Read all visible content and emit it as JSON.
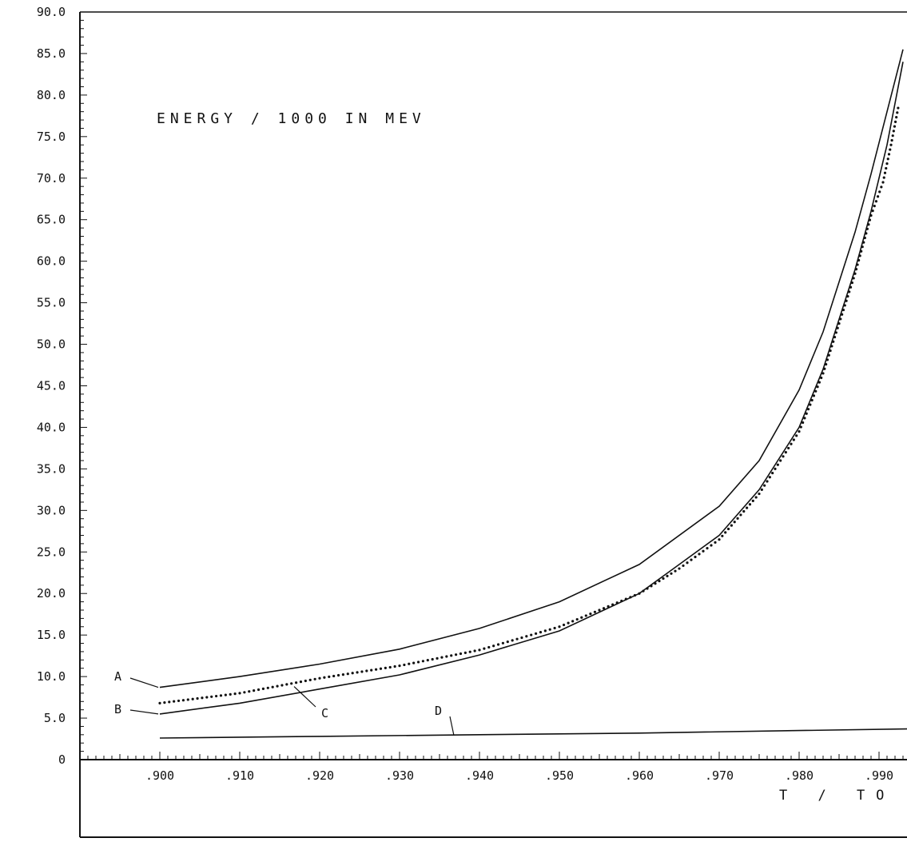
{
  "chart_data": {
    "type": "line",
    "title": "ENERGY / 1000 IN MEV",
    "xlabel": "T / TO",
    "ylabel": "",
    "xlim": [
      0.89,
      0.9935
    ],
    "ylim": [
      0,
      90
    ],
    "x_ticks": [
      0.9,
      0.91,
      0.92,
      0.93,
      0.94,
      0.95,
      0.96,
      0.97,
      0.98,
      0.99
    ],
    "x_tick_labels": [
      ".900",
      ".910",
      ".920",
      ".930",
      ".940",
      ".950",
      ".960",
      ".970",
      ".980",
      ".990"
    ],
    "y_ticks": [
      0,
      5,
      10,
      15,
      20,
      25,
      30,
      35,
      40,
      45,
      50,
      55,
      60,
      65,
      70,
      75,
      80,
      85,
      90
    ],
    "y_tick_labels": [
      "0",
      "5.0",
      "10.0",
      "15.0",
      "20.0",
      "25.0",
      "30.0",
      "35.0",
      "40.0",
      "45.0",
      "50.0",
      "55.0",
      "60.0",
      "65.0",
      "70.0",
      "75.0",
      "80.0",
      "85.0",
      "90.0"
    ],
    "grid": false,
    "series": [
      {
        "name": "A",
        "style": "solid",
        "x": [
          0.9,
          0.91,
          0.92,
          0.93,
          0.94,
          0.95,
          0.96,
          0.97,
          0.975,
          0.98,
          0.983,
          0.985,
          0.987,
          0.989,
          0.991,
          0.993
        ],
        "y": [
          8.7,
          10.0,
          11.5,
          13.3,
          15.8,
          19.0,
          23.5,
          30.5,
          36.0,
          44.5,
          51.5,
          57.5,
          63.5,
          70.5,
          78.0,
          85.5
        ]
      },
      {
        "name": "B",
        "style": "solid",
        "x": [
          0.9,
          0.91,
          0.92,
          0.93,
          0.94,
          0.95,
          0.96,
          0.965,
          0.97,
          0.975,
          0.98,
          0.983,
          0.985,
          0.987,
          0.989,
          0.991,
          0.993
        ],
        "y": [
          5.5,
          6.8,
          8.5,
          10.2,
          12.6,
          15.5,
          20.0,
          23.5,
          27.0,
          32.5,
          40.0,
          47.0,
          53.0,
          59.0,
          66.0,
          74.0,
          84.0
        ]
      },
      {
        "name": "C",
        "style": "dotted",
        "x": [
          0.9,
          0.91,
          0.92,
          0.93,
          0.94,
          0.95,
          0.96,
          0.965,
          0.97,
          0.975,
          0.98,
          0.983,
          0.985,
          0.987,
          0.989,
          0.9905,
          0.9915,
          0.9925
        ],
        "y": [
          6.8,
          8.0,
          9.8,
          11.3,
          13.2,
          16.0,
          20.0,
          23.0,
          26.5,
          32.0,
          39.5,
          46.5,
          52.5,
          58.5,
          65.5,
          69.5,
          74.0,
          79.0
        ]
      },
      {
        "name": "D",
        "style": "solid",
        "x": [
          0.9,
          0.92,
          0.94,
          0.96,
          0.98,
          0.9935
        ],
        "y": [
          2.6,
          2.8,
          3.0,
          3.2,
          3.5,
          3.7
        ]
      }
    ],
    "annotations": [
      {
        "label": "A",
        "series": "A"
      },
      {
        "label": "B",
        "series": "B"
      },
      {
        "label": "C",
        "series": "C"
      },
      {
        "label": "D",
        "series": "D"
      }
    ]
  }
}
